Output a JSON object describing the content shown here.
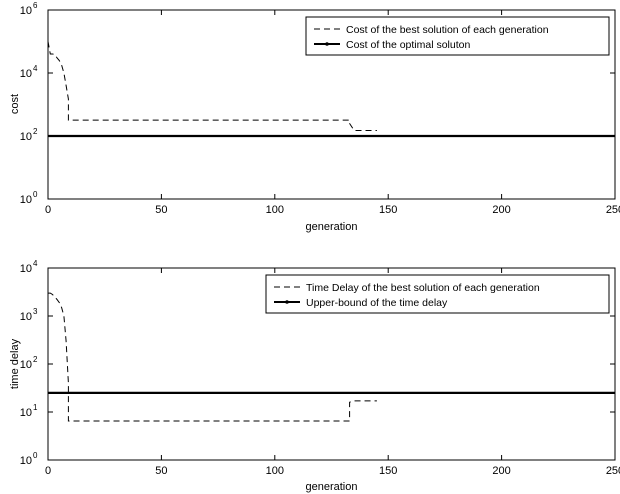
{
  "chart_data": [
    {
      "type": "line",
      "xlabel": "generation",
      "ylabel": "cost",
      "xlim": [
        0,
        250
      ],
      "ylim": [
        1,
        1000000
      ],
      "yscale": "log",
      "x_ticks": [
        "0",
        "50",
        "100",
        "150",
        "200",
        "250"
      ],
      "y_ticks": [
        {
          "base": "10",
          "exp": "0"
        },
        {
          "base": "10",
          "exp": "2"
        },
        {
          "base": "10",
          "exp": "4"
        },
        {
          "base": "10",
          "exp": "6"
        }
      ],
      "grid": false,
      "legend_position": "top-right",
      "series": [
        {
          "name": "Cost of the best solution of each generation",
          "style": "dashed",
          "x": [
            0,
            1,
            2,
            3,
            4,
            5,
            6,
            7,
            8,
            9,
            9,
            60,
            100,
            133,
            133,
            135,
            145
          ],
          "y": [
            100000,
            40000,
            40000,
            39000,
            30000,
            25000,
            18000,
            10000,
            4000,
            1500,
            320,
            320,
            320,
            320,
            250,
            150,
            150
          ]
        },
        {
          "name": "Cost of the optimal soluton",
          "style": "solid",
          "x": [
            0,
            250
          ],
          "y": [
            100,
            100
          ]
        }
      ]
    },
    {
      "type": "line",
      "xlabel": "generation",
      "ylabel": "time delay",
      "xlim": [
        0,
        250
      ],
      "ylim": [
        1,
        10000
      ],
      "yscale": "log",
      "x_ticks": [
        "0",
        "50",
        "100",
        "150",
        "200",
        "250"
      ],
      "y_ticks": [
        {
          "base": "10",
          "exp": "0"
        },
        {
          "base": "10",
          "exp": "1"
        },
        {
          "base": "10",
          "exp": "2"
        },
        {
          "base": "10",
          "exp": "3"
        },
        {
          "base": "10",
          "exp": "4"
        }
      ],
      "grid": false,
      "legend_position": "top-right",
      "series": [
        {
          "name": "Time Delay of the best solution of each generation",
          "style": "dashed",
          "x": [
            0,
            1,
            2,
            3,
            4,
            5,
            6,
            7,
            8,
            9,
            9,
            60,
            100,
            133,
            133,
            135,
            145
          ],
          "y": [
            3000,
            3000,
            2800,
            2500,
            2200,
            1900,
            1500,
            1000,
            300,
            40,
            6.5,
            6.5,
            6.5,
            6.5,
            16,
            17,
            17
          ]
        },
        {
          "name": "Upper-bound of the time delay",
          "style": "solid",
          "x": [
            0,
            250
          ],
          "y": [
            25,
            25
          ]
        }
      ]
    }
  ]
}
